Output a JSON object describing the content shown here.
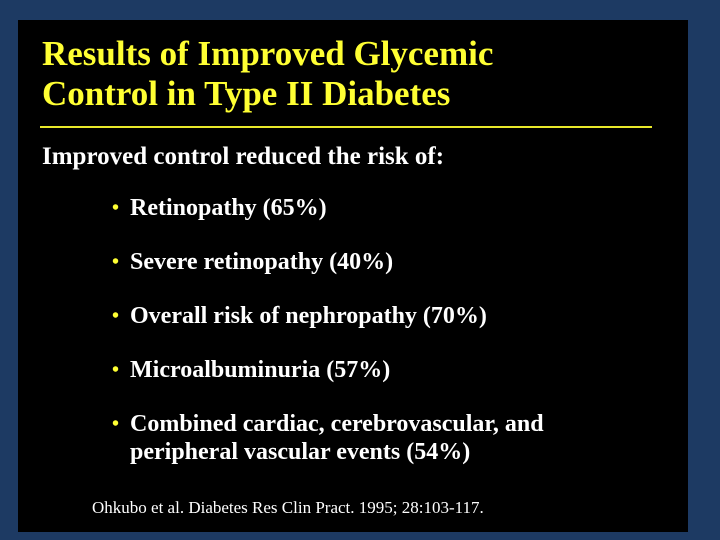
{
  "slide": {
    "title_line1": "Results of Improved Glycemic",
    "title_line2": "Control in Type II Diabetes",
    "lead": "Improved control reduced the risk of:",
    "bullet_glyph": "•",
    "bullets": [
      {
        "line1": "Retinopathy (65%)"
      },
      {
        "line1": "Severe retinopathy (40%)"
      },
      {
        "line1": "Overall risk of nephropathy (70%)"
      },
      {
        "line1": "Microalbuminuria (57%)"
      },
      {
        "line1": "Combined cardiac, cerebrovascular, and",
        "line2": "peripheral vascular events (54%)"
      }
    ],
    "citation": "Ohkubo et al. Diabetes Res Clin Pract. 1995; 28:103-117.",
    "colors": {
      "frame": "#1d3a63",
      "background": "#000000",
      "title": "#ffff33",
      "text": "#ffffff"
    }
  }
}
